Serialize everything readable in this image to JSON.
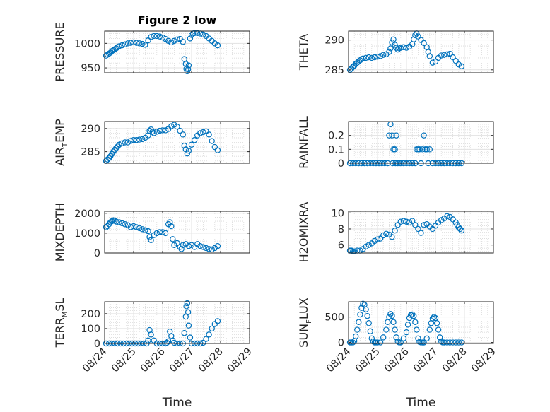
{
  "colors": {
    "marker": "#0072BD",
    "axis": "#262626",
    "grid": "#d9d9d9",
    "background": "#ffffff"
  },
  "chart_data": [
    {
      "id": "pressure",
      "type": "scatter",
      "title": "Figure 2 low",
      "ylabel": "PRESSURE",
      "ylim": [
        940,
        1025
      ],
      "yticks": [
        950,
        1000
      ],
      "xlim": [
        0,
        5
      ],
      "xticks": [
        "08/24",
        "08/25",
        "08/26",
        "08/27",
        "08/28",
        "08/29"
      ],
      "x": [
        0.05,
        0.1,
        0.15,
        0.2,
        0.25,
        0.3,
        0.35,
        0.4,
        0.45,
        0.5,
        0.6,
        0.7,
        0.8,
        0.9,
        1.0,
        1.1,
        1.2,
        1.3,
        1.4,
        1.5,
        1.6,
        1.7,
        1.8,
        1.9,
        2.0,
        2.1,
        2.2,
        2.3,
        2.4,
        2.5,
        2.6,
        2.7,
        2.75,
        2.8,
        2.82,
        2.85,
        2.88,
        2.9,
        2.95,
        3.0,
        3.05,
        3.1,
        3.2,
        3.3,
        3.4,
        3.5,
        3.6,
        3.7,
        3.8,
        3.9
      ],
      "y": [
        975,
        977,
        979,
        981,
        984,
        986,
        988,
        990,
        992,
        994,
        996,
        998,
        1000,
        1001,
        1002,
        1001,
        1000,
        999,
        997,
        1006,
        1013,
        1015,
        1015,
        1014,
        1012,
        1009,
        1005,
        1002,
        1005,
        1008,
        1009,
        1003,
        968,
        958,
        948,
        943,
        947,
        955,
        1010,
        1017,
        1020,
        1021,
        1021,
        1020,
        1018,
        1015,
        1010,
        1005,
        1000,
        996
      ]
    },
    {
      "id": "theta",
      "type": "scatter",
      "ylabel": "THETA",
      "ylim": [
        284.5,
        291.5
      ],
      "yticks": [
        285,
        290
      ],
      "xlim": [
        0,
        5
      ],
      "xticks": [
        "08/24",
        "08/25",
        "08/26",
        "08/27",
        "08/28",
        "08/29"
      ],
      "x": [
        0.05,
        0.1,
        0.15,
        0.2,
        0.25,
        0.3,
        0.35,
        0.4,
        0.45,
        0.5,
        0.6,
        0.7,
        0.8,
        0.9,
        1.0,
        1.1,
        1.2,
        1.3,
        1.4,
        1.45,
        1.5,
        1.55,
        1.6,
        1.65,
        1.7,
        1.75,
        1.8,
        1.9,
        2.0,
        2.1,
        2.2,
        2.25,
        2.3,
        2.35,
        2.4,
        2.5,
        2.6,
        2.7,
        2.75,
        2.8,
        2.9,
        3.0,
        3.1,
        3.2,
        3.3,
        3.4,
        3.5,
        3.6,
        3.7,
        3.8,
        3.9
      ],
      "y": [
        285,
        285.2,
        285.5,
        285.7,
        286,
        286.2,
        286.4,
        286.6,
        286.8,
        286.9,
        287,
        287.1,
        287,
        287.1,
        287.2,
        287.3,
        287.5,
        287.6,
        288,
        288.6,
        289.6,
        290.1,
        289.2,
        288.7,
        288.4,
        288.6,
        288.7,
        288.8,
        288.7,
        288.9,
        289.3,
        290.1,
        290.8,
        291.1,
        290.6,
        290,
        289.5,
        288.8,
        288,
        287.3,
        286.2,
        286.4,
        287,
        287.4,
        287.5,
        287.6,
        287.7,
        287.1,
        286.5,
        285.9,
        285.6
      ]
    },
    {
      "id": "air_temp",
      "type": "scatter",
      "ylabel": "AIR",
      "ylabel_sub": "T",
      "ylabel_rest": "EMP",
      "ylim": [
        282.5,
        291.5
      ],
      "yticks": [
        285,
        290
      ],
      "xlim": [
        0,
        5
      ],
      "xticks": [
        "08/24",
        "08/25",
        "08/26",
        "08/27",
        "08/28",
        "08/29"
      ],
      "x": [
        0.05,
        0.1,
        0.15,
        0.2,
        0.25,
        0.3,
        0.35,
        0.4,
        0.45,
        0.5,
        0.6,
        0.7,
        0.8,
        0.9,
        1.0,
        1.1,
        1.2,
        1.3,
        1.4,
        1.5,
        1.55,
        1.6,
        1.65,
        1.7,
        1.8,
        1.9,
        2.0,
        2.1,
        2.2,
        2.3,
        2.4,
        2.5,
        2.6,
        2.7,
        2.75,
        2.8,
        2.85,
        2.9,
        3.0,
        3.1,
        3.2,
        3.3,
        3.4,
        3.5,
        3.6,
        3.7,
        3.8,
        3.9
      ],
      "y": [
        283,
        283.3,
        283.6,
        284,
        284.5,
        285,
        285.4,
        285.8,
        286.1,
        286.5,
        286.8,
        287,
        287,
        287.3,
        287.5,
        287.5,
        287.6,
        287.7,
        288,
        288.5,
        289.5,
        289.8,
        289.3,
        289,
        289.3,
        289.5,
        289.6,
        289.6,
        289.9,
        290.5,
        290.8,
        290.4,
        289.5,
        288.7,
        286.3,
        285.5,
        284.6,
        285.2,
        286.5,
        287.5,
        288.5,
        289,
        289.2,
        289.4,
        288.7,
        287.3,
        286,
        285.3
      ]
    },
    {
      "id": "rainfall",
      "type": "scatter",
      "ylabel": "RAINFALL",
      "ylim": [
        0,
        0.3
      ],
      "yticks": [
        0,
        0.1,
        0.2
      ],
      "xlim": [
        0,
        5
      ],
      "xticks": [
        "08/24",
        "08/25",
        "08/26",
        "08/27",
        "08/28",
        "08/29"
      ],
      "x": [
        0.05,
        0.15,
        0.25,
        0.35,
        0.45,
        0.55,
        0.65,
        0.75,
        0.85,
        0.95,
        1.05,
        1.15,
        1.25,
        1.35,
        1.4,
        1.45,
        1.5,
        1.52,
        1.55,
        1.6,
        1.62,
        1.65,
        1.7,
        1.75,
        1.8,
        1.9,
        2.0,
        2.1,
        2.2,
        2.3,
        2.35,
        2.4,
        2.45,
        2.5,
        2.55,
        2.6,
        2.65,
        2.7,
        2.75,
        2.8,
        2.9,
        3.0,
        3.1,
        3.2,
        3.3,
        3.4,
        3.5,
        3.6,
        3.7,
        3.8,
        3.9
      ],
      "y": [
        0,
        0,
        0,
        0,
        0,
        0,
        0,
        0,
        0,
        0,
        0,
        0,
        0,
        0,
        0.2,
        0.28,
        0.2,
        0,
        0.1,
        0.1,
        0,
        0.2,
        0,
        0,
        0,
        0,
        0,
        0,
        0,
        0,
        0.1,
        0.1,
        0.1,
        0,
        0.1,
        0.2,
        0.1,
        0.1,
        0,
        0.1,
        0,
        0,
        0,
        0,
        0,
        0,
        0,
        0,
        0,
        0,
        0
      ]
    },
    {
      "id": "mixdepth",
      "type": "scatter",
      "ylabel": "MIXDEPTH",
      "ylim": [
        0,
        2100
      ],
      "yticks": [
        0,
        1000,
        2000
      ],
      "xlim": [
        0,
        5
      ],
      "xticks": [
        "08/24",
        "08/25",
        "08/26",
        "08/27",
        "08/28",
        "08/29"
      ],
      "x": [
        0.05,
        0.1,
        0.15,
        0.2,
        0.25,
        0.3,
        0.35,
        0.4,
        0.5,
        0.6,
        0.7,
        0.8,
        0.9,
        1.0,
        1.1,
        1.2,
        1.3,
        1.4,
        1.5,
        1.55,
        1.6,
        1.7,
        1.8,
        1.9,
        2.0,
        2.1,
        2.2,
        2.25,
        2.3,
        2.35,
        2.4,
        2.5,
        2.6,
        2.65,
        2.7,
        2.8,
        2.9,
        3.0,
        3.1,
        3.2,
        3.3,
        3.4,
        3.5,
        3.6,
        3.7,
        3.8,
        3.9
      ],
      "y": [
        1300,
        1350,
        1450,
        1550,
        1600,
        1650,
        1620,
        1580,
        1550,
        1500,
        1450,
        1400,
        1300,
        1350,
        1300,
        1250,
        1200,
        1150,
        1100,
        800,
        650,
        900,
        1000,
        1050,
        1050,
        1000,
        1450,
        1550,
        1350,
        700,
        400,
        500,
        300,
        200,
        400,
        450,
        350,
        400,
        300,
        450,
        350,
        300,
        250,
        200,
        180,
        250,
        350
      ]
    },
    {
      "id": "h2omixra",
      "type": "scatter",
      "ylabel": "H2OMIXRA",
      "ylim": [
        5,
        10.2
      ],
      "yticks": [
        6,
        8,
        10
      ],
      "xlim": [
        0,
        5
      ],
      "xticks": [
        "08/24",
        "08/25",
        "08/26",
        "08/27",
        "08/28",
        "08/29"
      ],
      "x": [
        0.05,
        0.1,
        0.15,
        0.2,
        0.3,
        0.4,
        0.5,
        0.6,
        0.7,
        0.8,
        0.9,
        1.0,
        1.1,
        1.2,
        1.3,
        1.4,
        1.5,
        1.6,
        1.7,
        1.8,
        1.9,
        2.0,
        2.1,
        2.2,
        2.3,
        2.4,
        2.5,
        2.6,
        2.7,
        2.8,
        2.9,
        3.0,
        3.1,
        3.2,
        3.3,
        3.4,
        3.5,
        3.6,
        3.7,
        3.75,
        3.8,
        3.85,
        3.9
      ],
      "y": [
        5.3,
        5.3,
        5.2,
        5.2,
        5.3,
        5.3,
        5.5,
        5.8,
        6.0,
        6.2,
        6.5,
        6.7,
        6.8,
        7.2,
        7.4,
        7.3,
        7.0,
        7.8,
        8.5,
        8.9,
        9.0,
        8.9,
        8.8,
        9.0,
        8.5,
        8.0,
        7.5,
        8.5,
        8.6,
        8.3,
        8.0,
        8.4,
        8.8,
        9.1,
        9.3,
        9.6,
        9.5,
        9.2,
        8.8,
        8.5,
        8.2,
        8.0,
        7.8
      ]
    },
    {
      "id": "terr_msl",
      "type": "scatter",
      "ylabel": "TERR",
      "ylabel_sub": "M",
      "ylabel_rest": "SL",
      "ylim": [
        0,
        280
      ],
      "yticks": [
        0,
        100,
        200
      ],
      "xlim": [
        0,
        5
      ],
      "xticks": [
        "08/24",
        "08/25",
        "08/26",
        "08/27",
        "08/28",
        "08/29"
      ],
      "x": [
        0.05,
        0.15,
        0.25,
        0.35,
        0.45,
        0.55,
        0.65,
        0.75,
        0.85,
        0.95,
        1.05,
        1.15,
        1.25,
        1.35,
        1.45,
        1.5,
        1.55,
        1.6,
        1.7,
        1.8,
        1.9,
        2.0,
        2.1,
        2.15,
        2.2,
        2.25,
        2.3,
        2.35,
        2.4,
        2.5,
        2.6,
        2.7,
        2.75,
        2.8,
        2.82,
        2.85,
        2.88,
        2.9,
        2.95,
        3.0,
        3.1,
        3.2,
        3.3,
        3.4,
        3.5,
        3.6,
        3.7,
        3.8,
        3.9
      ],
      "y": [
        0,
        0,
        0,
        0,
        0,
        0,
        0,
        0,
        0,
        0,
        0,
        0,
        0,
        0,
        0,
        20,
        90,
        60,
        20,
        0,
        0,
        0,
        0,
        5,
        15,
        80,
        50,
        20,
        5,
        0,
        0,
        0,
        70,
        180,
        250,
        270,
        210,
        120,
        40,
        0,
        0,
        0,
        0,
        5,
        30,
        60,
        100,
        130,
        150
      ]
    },
    {
      "id": "sun_flux",
      "type": "scatter",
      "ylabel": "SUN",
      "ylabel_sub": "F",
      "ylabel_rest": "LUX",
      "ylim": [
        -20,
        800
      ],
      "yticks": [
        0,
        500
      ],
      "xlim": [
        0,
        5
      ],
      "xticks": [
        "08/24",
        "08/25",
        "08/26",
        "08/27",
        "08/28",
        "08/29"
      ],
      "x": [
        0.05,
        0.1,
        0.15,
        0.2,
        0.25,
        0.3,
        0.35,
        0.4,
        0.45,
        0.5,
        0.55,
        0.6,
        0.65,
        0.7,
        0.75,
        0.8,
        0.85,
        0.9,
        0.95,
        1.0,
        1.1,
        1.2,
        1.3,
        1.35,
        1.4,
        1.45,
        1.5,
        1.55,
        1.6,
        1.65,
        1.7,
        1.75,
        1.8,
        1.9,
        2.0,
        2.05,
        2.1,
        2.15,
        2.2,
        2.25,
        2.3,
        2.35,
        2.4,
        2.45,
        2.5,
        2.55,
        2.6,
        2.7,
        2.8,
        2.85,
        2.9,
        2.95,
        3.0,
        3.05,
        3.1,
        3.15,
        3.2,
        3.25,
        3.3,
        3.4,
        3.5,
        3.6,
        3.7,
        3.8,
        3.9
      ],
      "y": [
        0,
        0,
        0,
        30,
        120,
        250,
        400,
        550,
        680,
        760,
        740,
        650,
        520,
        380,
        220,
        80,
        20,
        0,
        0,
        0,
        0,
        100,
        250,
        400,
        500,
        560,
        520,
        400,
        250,
        100,
        20,
        0,
        0,
        80,
        200,
        350,
        480,
        540,
        550,
        520,
        400,
        250,
        80,
        10,
        0,
        0,
        0,
        80,
        250,
        380,
        470,
        500,
        480,
        380,
        250,
        100,
        20,
        0,
        0,
        0,
        0,
        0,
        0,
        0,
        0
      ]
    }
  ],
  "xlabel": "Time"
}
